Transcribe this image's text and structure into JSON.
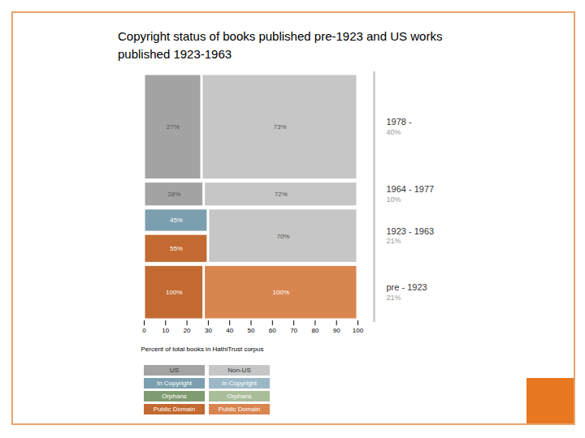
{
  "chart_data": {
    "type": "mosaic",
    "title": "Copyright status of books published pre-1923 and US works published 1923-1963",
    "xlabel": "Percent of total books in HathiTrust corpus",
    "xlim": [
      0,
      100
    ],
    "xticks": [
      0,
      10,
      20,
      30,
      40,
      50,
      60,
      70,
      80,
      90,
      100
    ],
    "tick_labels": "x",
    "data_labels": true,
    "series": [
      {
        "name": "US",
        "origin": "US",
        "status": "US",
        "color": "#a3a3a3"
      },
      {
        "name": "Non-US",
        "origin": "Non-US",
        "status": "Non-US",
        "color": "#c6c6c6"
      },
      {
        "name": "In Copyright",
        "origin": "US",
        "status": "In Copyright",
        "color": "#7b9fae"
      },
      {
        "name": "In Copyright",
        "origin": "Non-US",
        "status": "In Copyright",
        "color": "#9cb8c6"
      },
      {
        "name": "Orphans",
        "origin": "US",
        "status": "Orphans",
        "color": "#7f9c70"
      },
      {
        "name": "Orphans",
        "origin": "Non-US",
        "status": "Orphans",
        "color": "#a9bd98"
      },
      {
        "name": "Public Domain",
        "origin": "US",
        "status": "Public Domain",
        "color": "#c26a31"
      },
      {
        "name": "Public Domain",
        "origin": "Non-US",
        "status": "Public Domain",
        "color": "#d98550"
      }
    ],
    "rows": [
      {
        "name": "1978 -",
        "share": 40,
        "share_label": "40%",
        "columns": [
          {
            "origin": "US",
            "width": 27,
            "width_label": "27%",
            "cells": [
              {
                "status": "US",
                "height": 100
              }
            ]
          },
          {
            "origin": "Non-US",
            "width": 73,
            "width_label": "73%",
            "cells": [
              {
                "status": "Non-US",
                "height": 100
              }
            ]
          }
        ]
      },
      {
        "name": "1964 - 1977",
        "share": 10,
        "share_label": "10%",
        "columns": [
          {
            "origin": "US",
            "width": 28,
            "width_label": "28%",
            "cells": [
              {
                "status": "US",
                "height": 100
              }
            ]
          },
          {
            "origin": "Non-US",
            "width": 72,
            "width_label": "72%",
            "cells": [
              {
                "status": "Non-US",
                "height": 100
              }
            ]
          }
        ]
      },
      {
        "name": "1923 - 1963",
        "share": 21,
        "share_label": "21%",
        "columns": [
          {
            "origin": "US",
            "width": 30,
            "cells": [
              {
                "status": "In Copyright",
                "height": 45,
                "height_label": "45%"
              },
              {
                "status": "Public Domain",
                "height": 55,
                "height_label": "55%"
              }
            ]
          },
          {
            "origin": "Non-US",
            "width": 70,
            "width_label": "70%",
            "cells": [
              {
                "status": "Non-US",
                "height": 100
              }
            ]
          }
        ]
      },
      {
        "name": "pre - 1923",
        "share": 21,
        "share_label": "21%",
        "columns": [
          {
            "origin": "US",
            "width": 28,
            "cells": [
              {
                "status": "Public Domain",
                "height": 100,
                "height_label": "100%"
              }
            ]
          },
          {
            "origin": "Non-US",
            "width": 72,
            "cells": [
              {
                "status": "Public Domain",
                "height": 100,
                "height_label": "100%"
              }
            ]
          }
        ]
      }
    ]
  }
}
